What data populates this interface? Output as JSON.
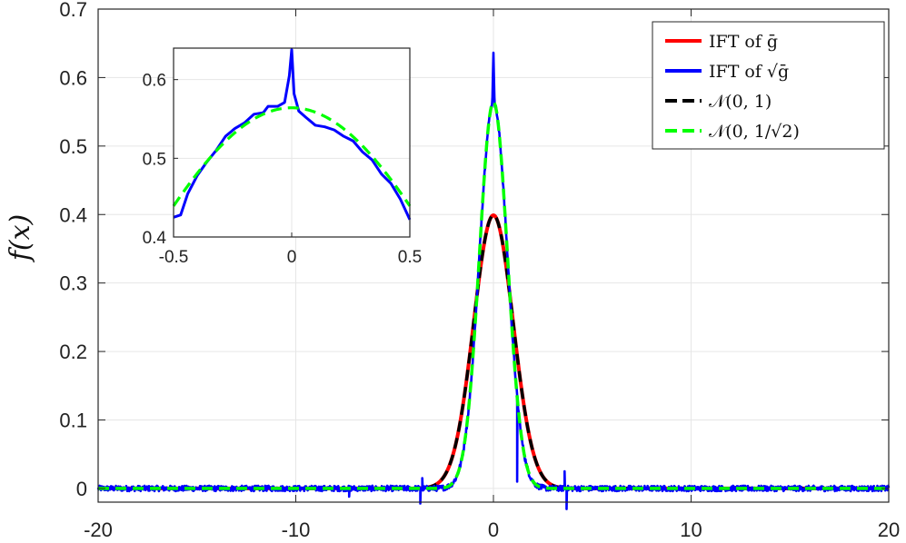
{
  "chart_data": {
    "type": "line",
    "xlabel": "",
    "ylabel": "f(x)",
    "xlim": [
      -20,
      20
    ],
    "ylim": [
      -0.02,
      0.7
    ],
    "xticks": [
      -20,
      -10,
      0,
      10,
      20
    ],
    "xtick_labels": [
      "-20",
      "-10",
      "0",
      "10",
      "20"
    ],
    "yticks": [
      0,
      0.1,
      0.2,
      0.3,
      0.4,
      0.5,
      0.6,
      0.7
    ],
    "ytick_labels": [
      "0",
      "0.1",
      "0.2",
      "0.3",
      "0.4",
      "0.5",
      "0.6",
      "0.7"
    ],
    "grid": true,
    "legend_position": "top-right",
    "legend": [
      {
        "text": "IFT of ḡ",
        "color": "#ff0000",
        "dash": "solid"
      },
      {
        "text": "IFT of √ḡ",
        "color": "#0000ff",
        "dash": "solid"
      },
      {
        "text": "𝒩(0, 1)",
        "color": "#000000",
        "dash": "dashed"
      },
      {
        "text": "𝒩(0, 1/√2)",
        "color": "#00ff00",
        "dash": "dashed"
      }
    ],
    "series": [
      {
        "name": "IFT of ḡ",
        "color": "#ff0000",
        "style": "solid",
        "kind": "gaussian",
        "mean": 0,
        "sd": 1.0
      },
      {
        "name": "IFT of √ḡ",
        "color": "#0000ff",
        "style": "solid",
        "kind": "gaussian-noisy",
        "mean": 0,
        "sd": 0.7071,
        "peak": 0.633,
        "spikes": [
          [
            -7.3,
            -0.012
          ],
          [
            -3.7,
            -0.022
          ],
          [
            -3.6,
            0.015
          ],
          [
            3.6,
            0.025
          ],
          [
            3.7,
            -0.03
          ],
          [
            1.2,
            0.01
          ]
        ]
      },
      {
        "name": "𝒩(0, 1)",
        "color": "#000000",
        "style": "dashed",
        "kind": "gaussian",
        "mean": 0,
        "sd": 1.0
      },
      {
        "name": "𝒩(0, 1/√2)",
        "color": "#00ff00",
        "style": "dashed",
        "kind": "gaussian",
        "mean": 0,
        "sd": 0.7071
      }
    ],
    "inset": {
      "xlim": [
        -0.5,
        0.5
      ],
      "ylim": [
        0.4,
        0.64
      ],
      "xticks": [
        -0.5,
        0,
        0.5
      ],
      "xtick_labels": [
        "-0.5",
        "0",
        "0.5"
      ],
      "yticks": [
        0.4,
        0.5,
        0.6
      ],
      "ytick_labels": [
        "0.4",
        "0.5",
        "0.6"
      ],
      "grid": true,
      "series": [
        {
          "name": "IFT of √ḡ",
          "color": "#0000ff",
          "style": "solid",
          "x": [
            -0.5,
            -0.47,
            -0.44,
            -0.4,
            -0.36,
            -0.32,
            -0.28,
            -0.24,
            -0.2,
            -0.16,
            -0.12,
            -0.1,
            -0.06,
            -0.03,
            -0.01,
            0.0,
            0.01,
            0.03,
            0.06,
            0.1,
            0.14,
            0.18,
            0.22,
            0.26,
            0.3,
            0.34,
            0.38,
            0.42,
            0.46,
            0.5
          ],
          "y": [
            0.425,
            0.428,
            0.455,
            0.478,
            0.495,
            0.51,
            0.528,
            0.538,
            0.545,
            0.556,
            0.558,
            0.566,
            0.566,
            0.571,
            0.605,
            0.638,
            0.582,
            0.56,
            0.552,
            0.542,
            0.54,
            0.536,
            0.528,
            0.522,
            0.508,
            0.498,
            0.48,
            0.468,
            0.448,
            0.422
          ]
        },
        {
          "name": "𝒩(0, 1/√2)",
          "color": "#00ff00",
          "style": "dashed",
          "kind": "gaussian",
          "mean": 0,
          "sd": 0.7071
        }
      ]
    }
  }
}
